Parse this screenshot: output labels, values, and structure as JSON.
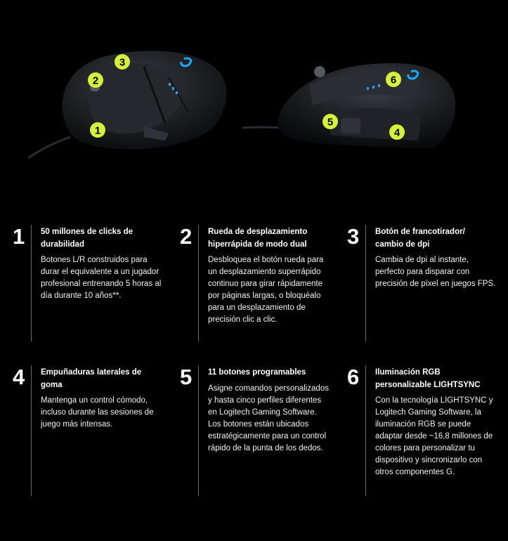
{
  "colors": {
    "background": "#000000",
    "badge": "#d7f03a",
    "led": "#1aa7ff",
    "text": "#ffffff",
    "divider": "#6a6a6a"
  },
  "hero": {
    "icon": "gaming-mouse-image",
    "callouts": [
      "1",
      "2",
      "3",
      "4",
      "5",
      "6"
    ]
  },
  "features": [
    {
      "number": "1",
      "title": "50 millones de clicks de durabilidad",
      "description": "Botones L/R construidos para durar el equivalente a un jugador profesional entrenando 5 horas al día durante 10 años**."
    },
    {
      "number": "2",
      "title": "Rueda de desplazamiento hiperrápida de modo dual",
      "description": "Desbloquea el botón rueda para un desplazamiento superrápido continuo para girar rápidamente por páginas largas, o bloquéalo para un desplazamiento de precisión clic a clic."
    },
    {
      "number": "3",
      "title": "Botón de francotirador/ cambio de dpi",
      "description": "Cambia de dpi al instante, perfecto para disparar con precisión de píxel en juegos FPS."
    },
    {
      "number": "4",
      "title": "Empuñaduras laterales de goma",
      "description": "Mantenga un control cómodo, incluso durante las sesiones de juego más intensas."
    },
    {
      "number": "5",
      "title": "11 botones programables",
      "description": "Asigne comandos personalizados y hasta cinco perfiles diferentes en Logitech Gaming Software. Los botones están ubicados estratégicamente para un control rápido de la punta de los dedos."
    },
    {
      "number": "6",
      "title": "Iluminación RGB personalizable LIGHTSYNC",
      "description": "Con la tecnología LIGHTSYNC y Logitech Gaming Software, la iluminación RGB se puede adaptar desde ~16,8 millones de colores para personalizar tu dispositivo y sincronizarlo con otros componentes G."
    }
  ]
}
